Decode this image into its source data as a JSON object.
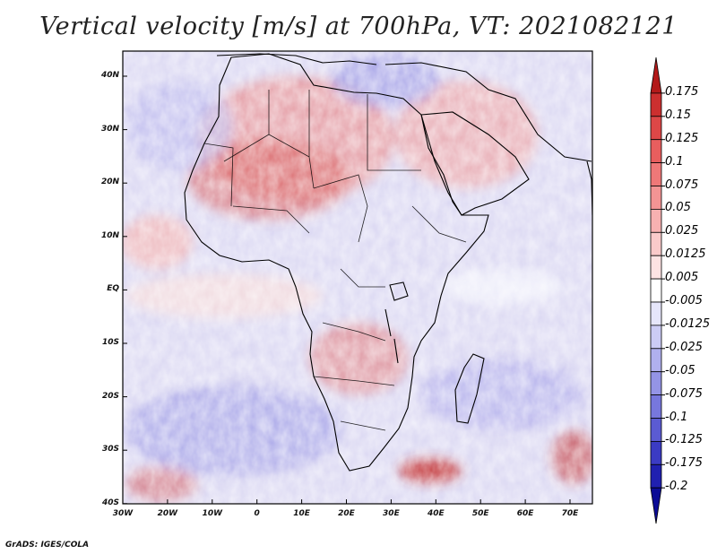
{
  "title": "Vertical velocity [m/s] at 700hPa, VT: 2021082121",
  "footer": "GrADS: IGES/COLA",
  "lat_labels": [
    "40N",
    "30N",
    "20N",
    "10N",
    "EQ",
    "10S",
    "20S",
    "30S",
    "40S"
  ],
  "lon_labels": [
    "30W",
    "20W",
    "10W",
    "0",
    "10E",
    "20E",
    "30E",
    "40E",
    "50E",
    "60E",
    "70E"
  ],
  "colorbar": {
    "levels": [
      "0.175",
      "0.15",
      "0.125",
      "0.1",
      "0.075",
      "0.05",
      "0.025",
      "0.0125",
      "0.005",
      "-0.005",
      "-0.0125",
      "-0.025",
      "-0.05",
      "-0.075",
      "-0.1",
      "-0.125",
      "-0.175",
      "-0.2"
    ],
    "colors": [
      "#b31a1a",
      "#cc2f2f",
      "#dd4747",
      "#e85e5e",
      "#ef7878",
      "#f39494",
      "#f7b1b1",
      "#facaca",
      "#fde3e3",
      "#ffffff",
      "#e6e6fb",
      "#ccccf5",
      "#b0b0ee",
      "#9494e6",
      "#7777dd",
      "#5b5bd2",
      "#3b3bc4",
      "#2020b0",
      "#0c0c96"
    ]
  },
  "map": {
    "region": "Africa",
    "lat_range": [
      -40,
      45
    ],
    "lon_range": [
      -30,
      75
    ]
  }
}
